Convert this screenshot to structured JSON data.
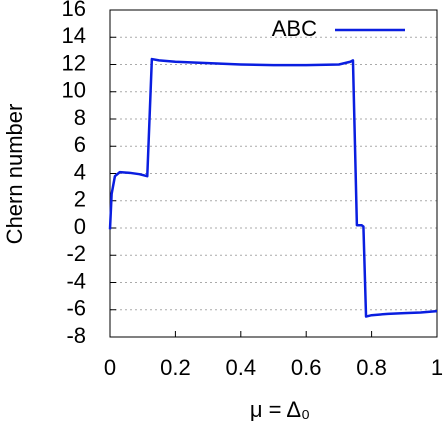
{
  "chart_data": {
    "type": "line",
    "xlabel": "μ = Δ₀",
    "ylabel": "Chern number",
    "xlim": [
      0,
      1
    ],
    "xticks": [
      0,
      0.2,
      0.4,
      0.6,
      0.8,
      1
    ],
    "ylim": [
      -8,
      16
    ],
    "yticks": [
      -8,
      -6,
      -4,
      -2,
      0,
      2,
      4,
      6,
      8,
      10,
      12,
      14,
      16
    ],
    "grid": true,
    "legend": "upper right",
    "x": [
      0,
      0.005,
      0.015,
      0.03,
      0.06,
      0.09,
      0.114,
      0.128,
      0.15,
      0.2,
      0.3,
      0.4,
      0.5,
      0.6,
      0.7,
      0.735,
      0.743,
      0.755,
      0.77,
      0.775,
      0.783,
      0.8,
      0.85,
      0.9,
      0.95,
      1
    ],
    "series": [
      {
        "name": "ABC",
        "color": "#0a1ee0",
        "values": [
          -0.1,
          2.5,
          3.8,
          4.1,
          4.05,
          3.95,
          3.8,
          12.4,
          12.3,
          12.2,
          12.1,
          12.0,
          11.95,
          11.95,
          12.0,
          12.2,
          12.3,
          0.2,
          0.2,
          0.1,
          -6.5,
          -6.4,
          -6.3,
          -6.25,
          -6.2,
          -6.1
        ]
      }
    ]
  }
}
